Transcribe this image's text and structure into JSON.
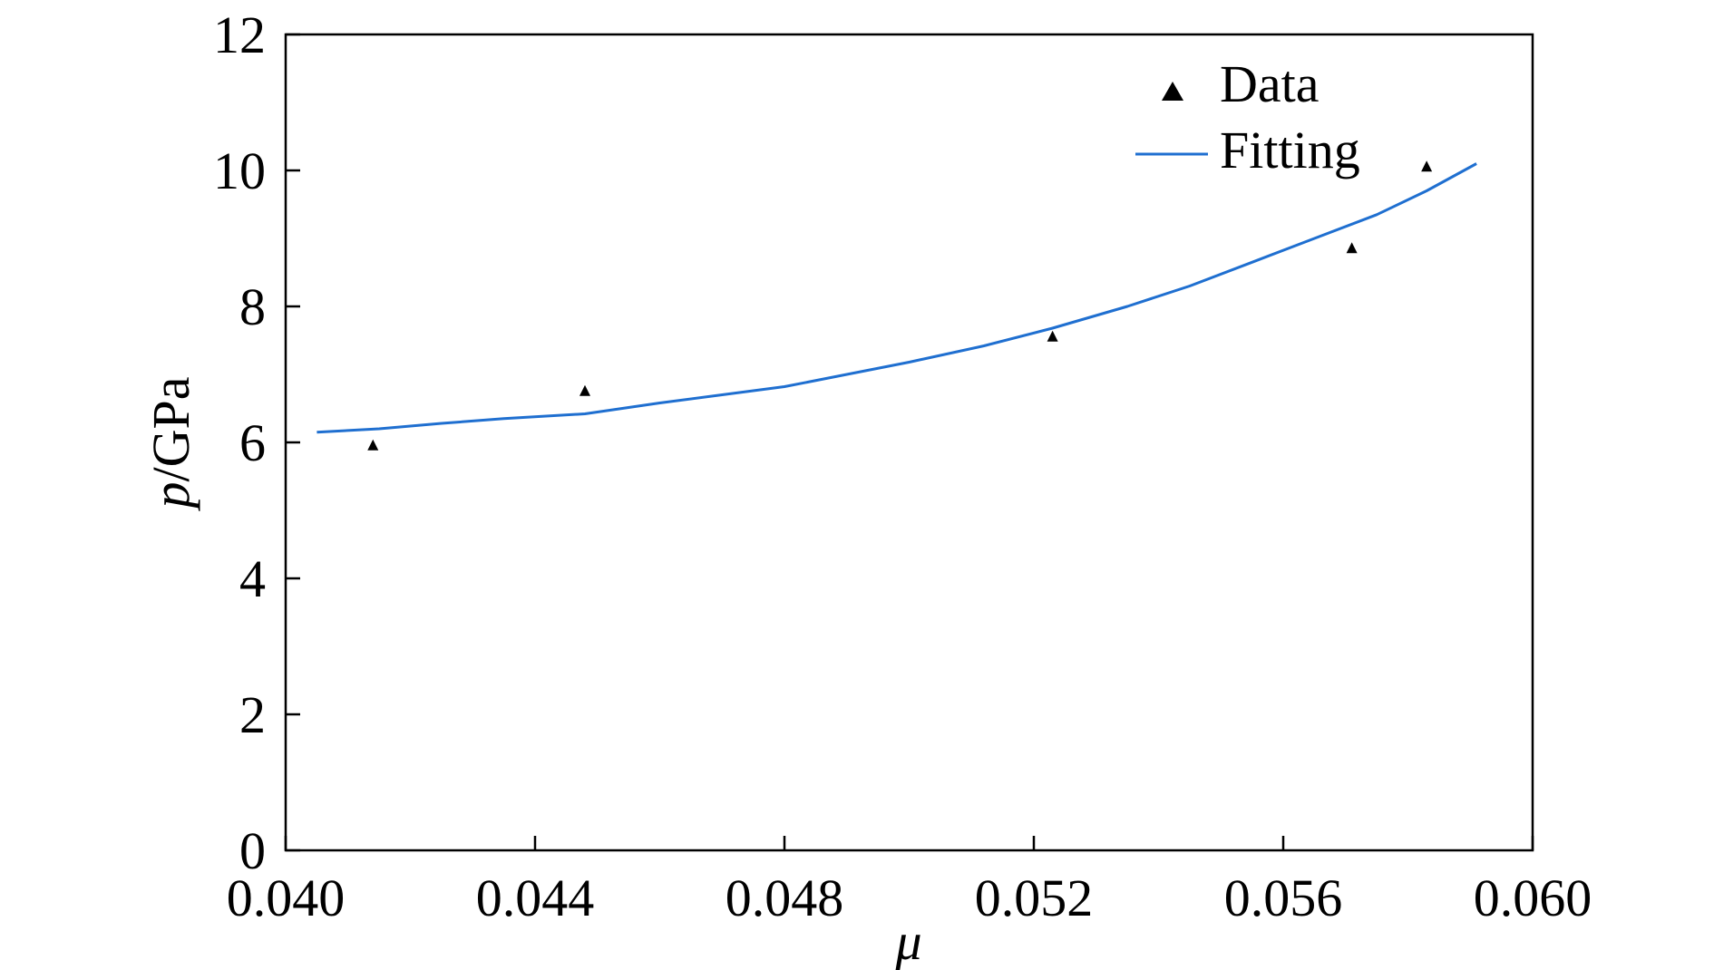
{
  "chart_data": {
    "type": "scatter",
    "title": "",
    "xlabel": "μ",
    "ylabel_italic": "p",
    "ylabel_rest": "/GPa",
    "xlim": [
      0.04,
      0.06
    ],
    "ylim": [
      0,
      12
    ],
    "xticks": [
      "0.040",
      "0.044",
      "0.048",
      "0.052",
      "0.056",
      "0.060"
    ],
    "yticks": [
      "0",
      "2",
      "4",
      "6",
      "8",
      "10",
      "12"
    ],
    "grid": false,
    "legend_position": "top-right",
    "series": [
      {
        "name": "Data",
        "kind": "scatter",
        "marker": "triangle",
        "color": "#000000",
        "points": [
          {
            "x": 0.0414,
            "y": 5.95
          },
          {
            "x": 0.0448,
            "y": 6.75
          },
          {
            "x": 0.0523,
            "y": 7.55
          },
          {
            "x": 0.0571,
            "y": 8.85
          },
          {
            "x": 0.0583,
            "y": 10.05
          }
        ]
      },
      {
        "name": "Fitting",
        "kind": "line",
        "color": "#1f6fd0",
        "points": [
          {
            "x": 0.0405,
            "y": 6.15
          },
          {
            "x": 0.0415,
            "y": 6.2
          },
          {
            "x": 0.0425,
            "y": 6.28
          },
          {
            "x": 0.0435,
            "y": 6.35
          },
          {
            "x": 0.0448,
            "y": 6.42
          },
          {
            "x": 0.046,
            "y": 6.58
          },
          {
            "x": 0.047,
            "y": 6.7
          },
          {
            "x": 0.048,
            "y": 6.82
          },
          {
            "x": 0.049,
            "y": 7.0
          },
          {
            "x": 0.05,
            "y": 7.18
          },
          {
            "x": 0.0512,
            "y": 7.42
          },
          {
            "x": 0.0523,
            "y": 7.68
          },
          {
            "x": 0.0535,
            "y": 8.0
          },
          {
            "x": 0.0545,
            "y": 8.3
          },
          {
            "x": 0.0555,
            "y": 8.65
          },
          {
            "x": 0.0565,
            "y": 9.0
          },
          {
            "x": 0.0575,
            "y": 9.35
          },
          {
            "x": 0.0583,
            "y": 9.7
          },
          {
            "x": 0.0591,
            "y": 10.1
          }
        ]
      }
    ]
  }
}
